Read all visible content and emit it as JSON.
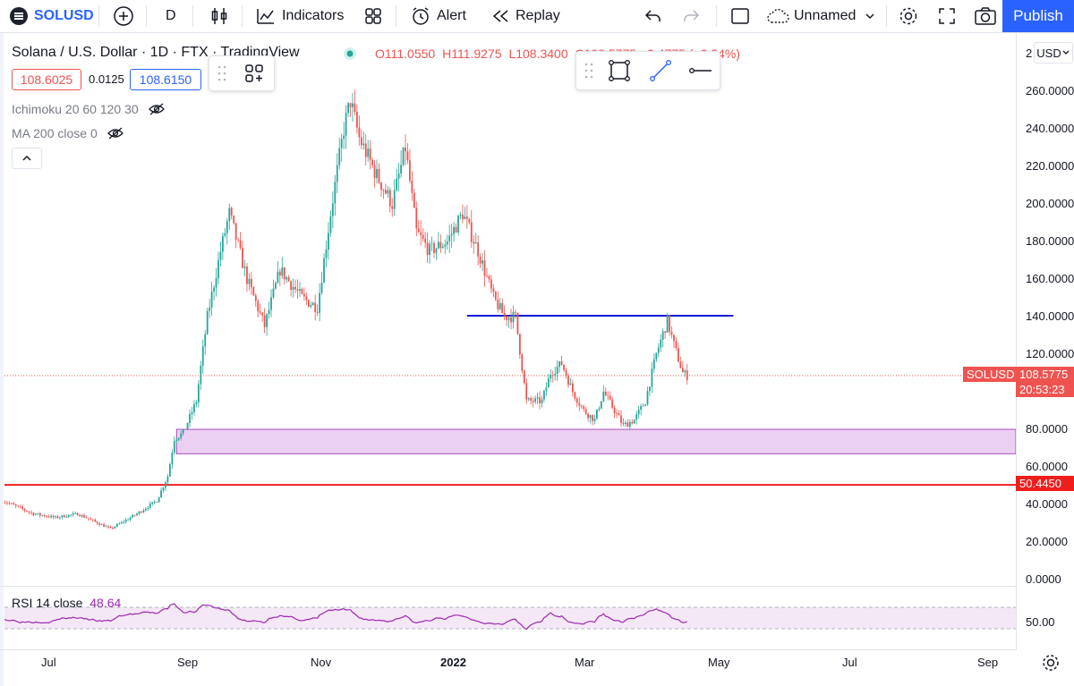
{
  "toolbar": {
    "symbol": "SOLUSD",
    "interval": "D",
    "indicators_label": "Indicators",
    "alert_label": "Alert",
    "replay_label": "Replay",
    "layout_name": "Unnamed",
    "publish_label": "Publish"
  },
  "legend": {
    "title": "Solana / U.S. Dollar · 1D · FTX · TradingView",
    "open": "O111.0550",
    "high": "H111.9275",
    "low": "L108.3400",
    "close_change": "C108.5775 −2.4775 (−2.24%)",
    "bid": "108.6025",
    "spread": "0.0125",
    "ask": "108.6150",
    "ichimoku": "Ichimoku 20 60 120 30",
    "ma": "MA 200 close 0"
  },
  "price_axis": {
    "currency": "USD",
    "labels": [
      "260.0000",
      "240.0000",
      "220.0000",
      "200.0000",
      "180.0000",
      "160.0000",
      "140.0000",
      "120.0000",
      "80.0000",
      "60.0000",
      "40.0000",
      "20.0000",
      "0.0000"
    ]
  },
  "price_tags": {
    "symbol": "SOLUSD",
    "last": "108.5775",
    "countdown": "20:53:23",
    "support": "50.4450"
  },
  "rsi": {
    "label": "RSI 14 close",
    "value": "48.64",
    "axis": "50.00"
  },
  "time_axis": [
    "Jul",
    "Sep",
    "Nov",
    "2022",
    "Mar",
    "May",
    "Jul",
    "Sep"
  ],
  "colors": {
    "up": "#26a69a",
    "down": "#ef5350",
    "resistance": "#0d1bd6",
    "support": "#f01d1d",
    "zone": "#e7c8f0",
    "rsi": "#9c27b0",
    "accent": "#2962ff"
  },
  "chart_data": {
    "type": "candlestick",
    "price_range": [
      0,
      270
    ],
    "resistance": 140.5,
    "support": 50.445,
    "zone": [
      67,
      80
    ],
    "last_price": 108.5775,
    "path_points": [
      [
        "2021-06-01",
        42
      ],
      [
        "2021-06-15",
        35
      ],
      [
        "2021-06-25",
        33
      ],
      [
        "2021-07-05",
        35
      ],
      [
        "2021-07-20",
        27
      ],
      [
        "2021-08-01",
        35
      ],
      [
        "2021-08-10",
        42
      ],
      [
        "2021-08-15",
        55
      ],
      [
        "2021-08-18",
        75
      ],
      [
        "2021-08-22",
        78
      ],
      [
        "2021-08-28",
        95
      ],
      [
        "2021-09-02",
        140
      ],
      [
        "2021-09-08",
        175
      ],
      [
        "2021-09-12",
        195
      ],
      [
        "2021-09-20",
        160
      ],
      [
        "2021-09-28",
        135
      ],
      [
        "2021-10-05",
        165
      ],
      [
        "2021-10-15",
        150
      ],
      [
        "2021-10-22",
        145
      ],
      [
        "2021-10-28",
        195
      ],
      [
        "2021-11-03",
        240
      ],
      [
        "2021-11-06",
        255
      ],
      [
        "2021-11-10",
        235
      ],
      [
        "2021-11-18",
        215
      ],
      [
        "2021-11-25",
        200
      ],
      [
        "2021-12-01",
        230
      ],
      [
        "2021-12-06",
        185
      ],
      [
        "2021-12-12",
        175
      ],
      [
        "2021-12-20",
        180
      ],
      [
        "2021-12-27",
        195
      ],
      [
        "2022-01-03",
        175
      ],
      [
        "2022-01-10",
        150
      ],
      [
        "2022-01-15",
        140
      ],
      [
        "2022-01-20",
        140
      ],
      [
        "2022-01-25",
        95
      ],
      [
        "2022-02-01",
        95
      ],
      [
        "2022-02-05",
        110
      ],
      [
        "2022-02-10",
        115
      ],
      [
        "2022-02-15",
        100
      ],
      [
        "2022-02-20",
        90
      ],
      [
        "2022-02-25",
        85
      ],
      [
        "2022-03-01",
        100
      ],
      [
        "2022-03-05",
        92
      ],
      [
        "2022-03-10",
        82
      ],
      [
        "2022-03-15",
        85
      ],
      [
        "2022-03-20",
        95
      ],
      [
        "2022-03-25",
        120
      ],
      [
        "2022-03-30",
        138
      ],
      [
        "2022-04-02",
        125
      ],
      [
        "2022-04-06",
        110
      ],
      [
        "2022-04-08",
        108.5775
      ]
    ],
    "rsi_levels": [
      30,
      70
    ]
  }
}
